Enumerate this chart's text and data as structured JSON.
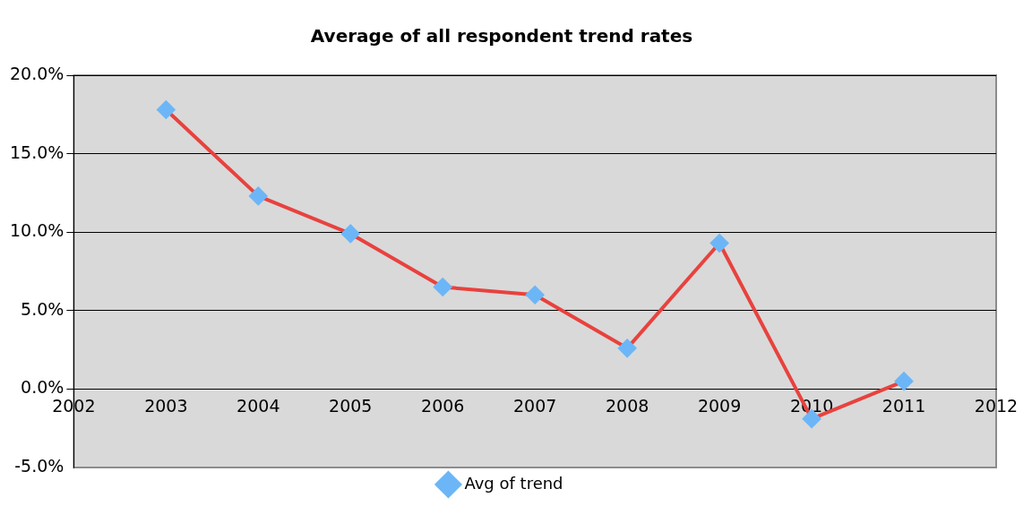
{
  "chart_data": {
    "type": "line",
    "title": "Average of all respondent trend rates",
    "x": [
      2003,
      2004,
      2005,
      2006,
      2007,
      2008,
      2009,
      2010,
      2011
    ],
    "series": [
      {
        "name": "Avg of trend",
        "color": "#e8423e",
        "colors": [
          "#6cb6f7",
          "#6cb6f7",
          "#6cb6f7",
          "#6cb6f7",
          "#6cb6f7",
          "#6cb6f7",
          "#6cb6f7",
          "#6cb6f7",
          "#6cb6f7"
        ],
        "values": [
          17.8,
          12.3,
          9.9,
          6.5,
          6.0,
          2.6,
          9.3,
          -1.9,
          0.5
        ]
      }
    ],
    "xlim": [
      2002,
      2012
    ],
    "xticks": [
      2002,
      2003,
      2004,
      2005,
      2006,
      2007,
      2008,
      2009,
      2010,
      2011,
      2012
    ],
    "ylim": [
      -5,
      20
    ],
    "yticks": [
      {
        "value": -5,
        "label": "-5.0%"
      },
      {
        "value": 0,
        "label": "0.0%"
      },
      {
        "value": 5,
        "label": "5.0%"
      },
      {
        "value": 10,
        "label": "10.0%"
      },
      {
        "value": 15,
        "label": "15.0%"
      },
      {
        "value": 20,
        "label": "20.0%"
      }
    ],
    "grid": "y",
    "legend": "bottom",
    "marker": "diamond",
    "line_style": "solid"
  }
}
